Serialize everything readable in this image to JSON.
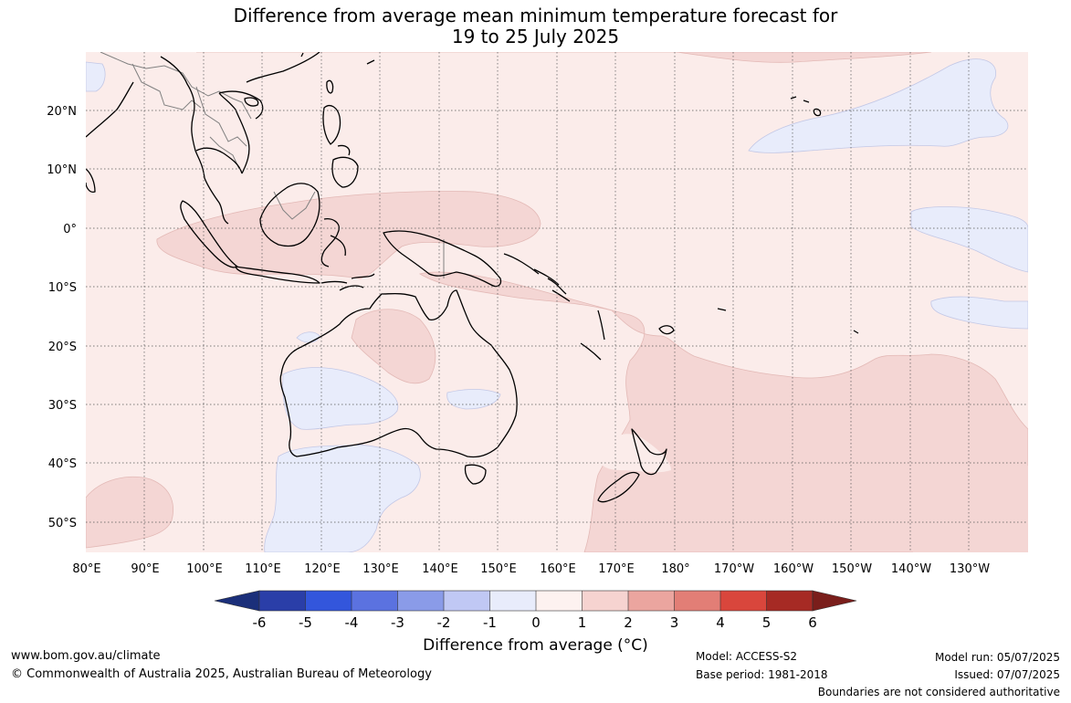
{
  "title": {
    "line1": "Difference from average mean minimum temperature forecast for",
    "line2": "19 to 25 July 2025"
  },
  "map": {
    "lat_ticks": [
      "20°N",
      "10°N",
      "0°",
      "10°S",
      "20°S",
      "30°S",
      "40°S",
      "50°S"
    ],
    "lon_ticks": [
      "80°E",
      "90°E",
      "100°E",
      "110°E",
      "120°E",
      "130°E",
      "140°E",
      "150°E",
      "160°E",
      "170°E",
      "180°",
      "170°W",
      "160°W",
      "150°W",
      "140°W",
      "130°W"
    ],
    "colors": {
      "ocean_base": "#fbecea",
      "warm_1_2": "#f4d6d4",
      "cool_0_1": "#e8ecfb",
      "coastline": "#000000",
      "border": "#808080",
      "grid": "#555555"
    }
  },
  "colorbar": {
    "title": "Difference from average (°C)",
    "ticks": [
      "-6",
      "-5",
      "-4",
      "-3",
      "-2",
      "-1",
      "0",
      "1",
      "2",
      "3",
      "4",
      "5",
      "6"
    ],
    "colors": [
      "#1b2f7a",
      "#2a3ea8",
      "#3356dc",
      "#5b72e0",
      "#8a9be8",
      "#c0c8f4",
      "#e8ecfb",
      "#fdf2f0",
      "#f6d3d0",
      "#eba59f",
      "#e27e76",
      "#d9463c",
      "#a62a24",
      "#7a1e1b"
    ]
  },
  "footer": {
    "website": "www.bom.gov.au/climate",
    "copyright": "© Commonwealth of Australia 2025, Australian Bureau of Meteorology",
    "model": "Model: ACCESS-S2",
    "base_period": "Base period: 1981-2018",
    "model_run": "Model run: 05/07/2025",
    "issued": "Issued: 07/07/2025",
    "boundaries": "Boundaries are not considered authoritative"
  }
}
